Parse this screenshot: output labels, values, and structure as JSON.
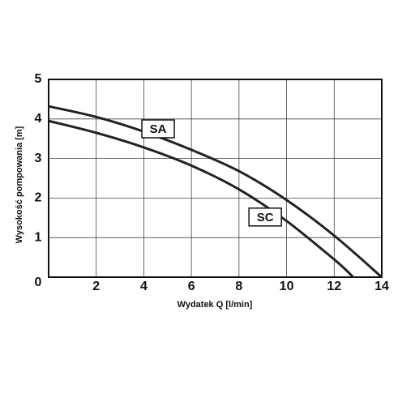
{
  "chart_data": {
    "type": "line",
    "x_label": "Wydatek Q  [l/min]",
    "y_label": "Wysokość pompowania  [m]",
    "x": [
      0,
      2,
      4,
      6,
      8,
      10,
      12,
      14
    ],
    "series": [
      {
        "name": "SA",
        "color": "#222222",
        "values": [
          4.32,
          4.05,
          3.68,
          3.22,
          2.68,
          1.95,
          1.05,
          0
        ]
      },
      {
        "name": "SC",
        "color": "#222222",
        "values": [
          3.95,
          3.65,
          3.28,
          2.82,
          2.22,
          1.42,
          0.45,
          null
        ]
      }
    ],
    "end_x": [
      14,
      12.8
    ],
    "xlim": [
      0,
      14
    ],
    "xticks": [
      2,
      4,
      6,
      8,
      10,
      12,
      14
    ],
    "ylim": [
      0,
      5
    ],
    "yticks": [
      0,
      1,
      2,
      3,
      4,
      5
    ],
    "grid": true
  }
}
